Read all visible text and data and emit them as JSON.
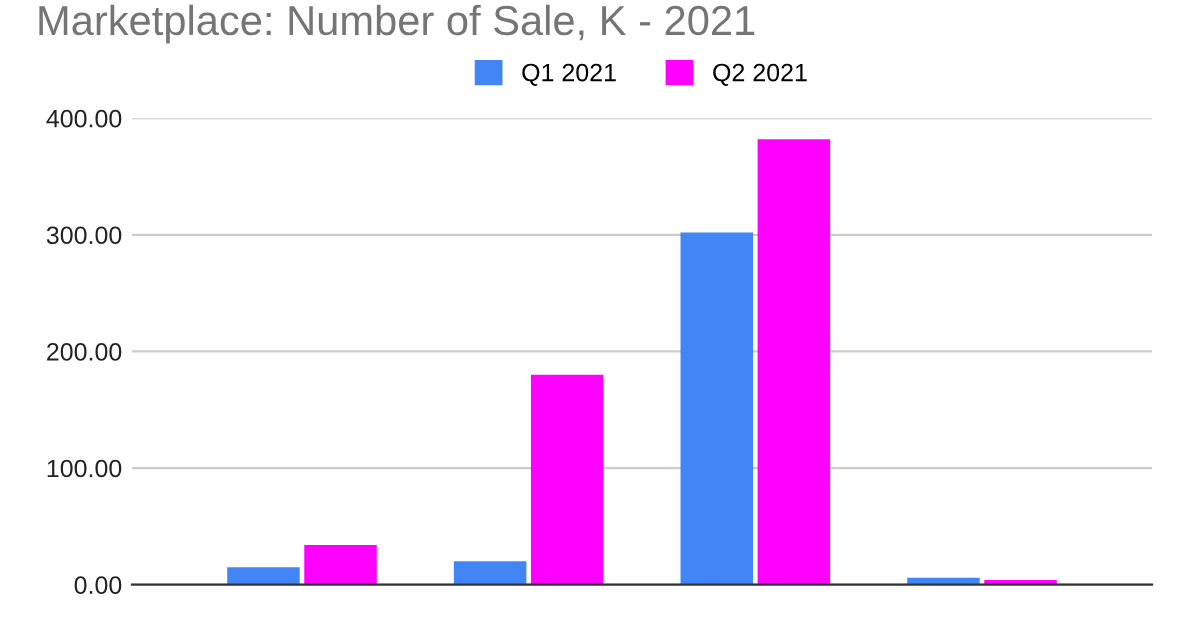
{
  "chart_data": {
    "type": "bar",
    "title": "Marketplace: Number of Sale, K - 2021",
    "categories": [
      null,
      null,
      null,
      null
    ],
    "series": [
      {
        "name": "Q1 2021",
        "color": "#4285f4",
        "values": [
          15,
          20,
          302,
          6
        ]
      },
      {
        "name": "Q2 2021",
        "color": "#ff00ff",
        "values": [
          34,
          180,
          382,
          4
        ]
      }
    ],
    "ylim": [
      0,
      400
    ],
    "yticks": [
      {
        "value": 0,
        "label": "0.00"
      },
      {
        "value": 100,
        "label": "100.00"
      },
      {
        "value": 200,
        "label": "200.00"
      },
      {
        "value": 300,
        "label": "300.00"
      },
      {
        "value": 400,
        "label": "400.00"
      }
    ],
    "grid": "y",
    "legend": "top"
  }
}
